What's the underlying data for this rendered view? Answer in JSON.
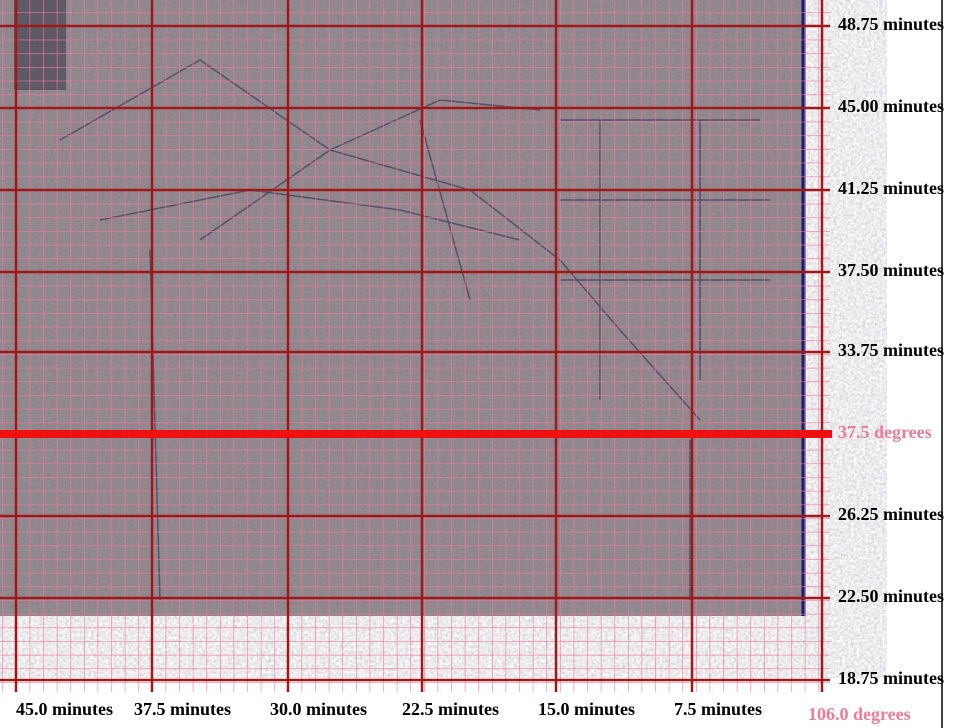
{
  "map": {
    "latitude_minute_labels": [
      "48.75 minutes",
      "45.00 minutes",
      "41.25 minutes",
      "37.50 minutes",
      "33.75 minutes",
      "26.25 minutes",
      "22.50 minutes",
      "18.75 minutes"
    ],
    "latitude_degree_label": "37.5 degrees",
    "longitude_minute_labels": [
      "45.0 minutes",
      "37.5 minutes",
      "30.0 minutes",
      "22.5 minutes",
      "15.0 minutes",
      "7.5 minutes"
    ],
    "longitude_degree_label": "106.0 degrees"
  }
}
